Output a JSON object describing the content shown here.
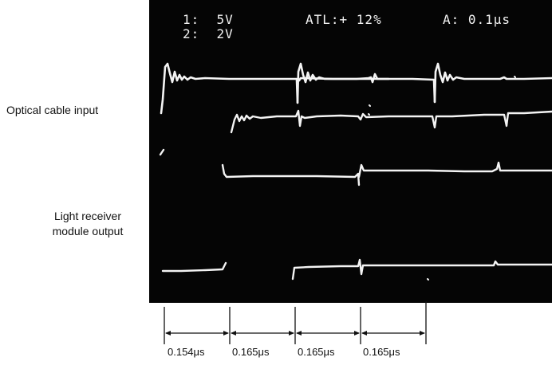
{
  "labels": {
    "optical_input": "Optical cable input",
    "light_receiver_line1": "Light receiver",
    "light_receiver_line2": "module output"
  },
  "scope": {
    "ch1": "1:  5V",
    "ch2": "2:  2V",
    "atl": "ATL:+ 12%",
    "a_time": "A: 0.1μs",
    "trace_color": "#f4f4f4",
    "screen_color": "#050505"
  },
  "intervals": [
    "0.154μs",
    "0.165μs",
    "0.165μs",
    "0.165μs"
  ]
}
